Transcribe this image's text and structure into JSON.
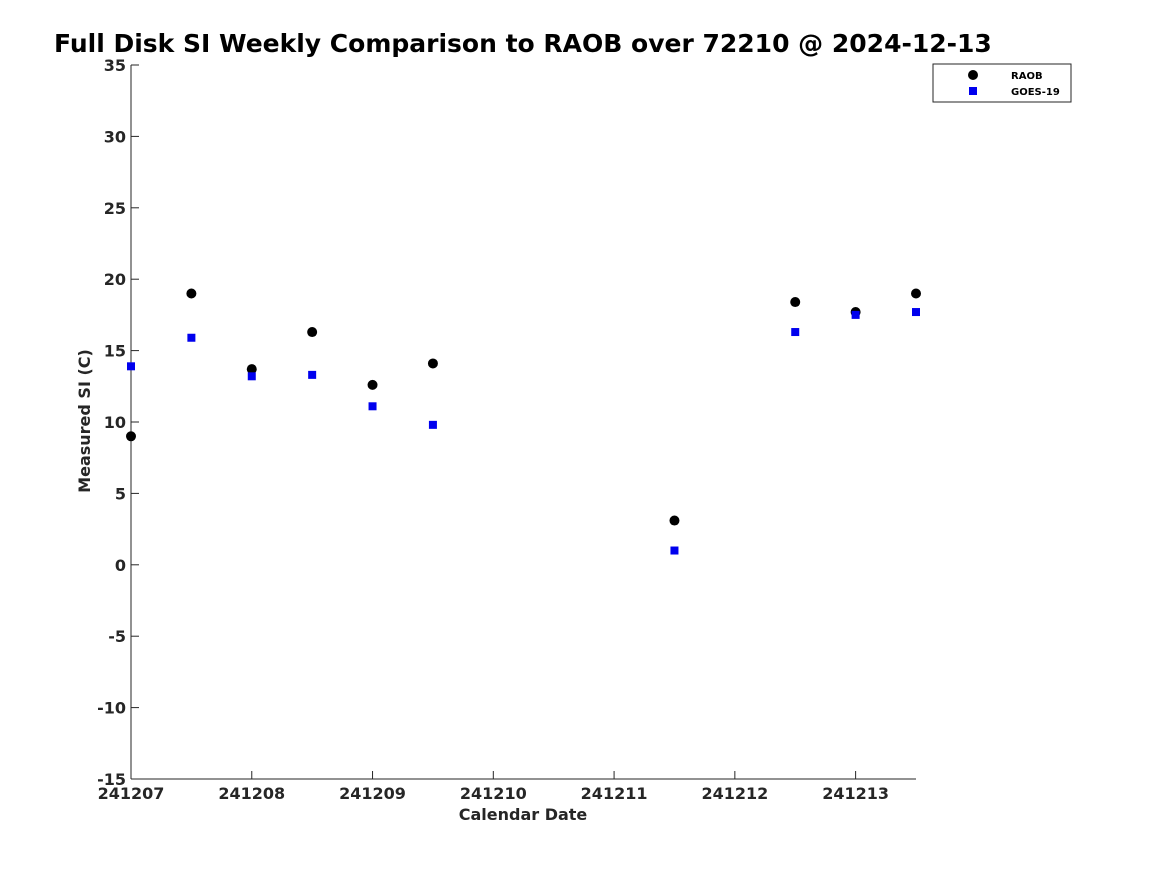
{
  "chart_data": {
    "type": "scatter",
    "title": "Full Disk SI Weekly Comparison to RAOB over 72210 @ 2024-12-13",
    "xlabel": "Calendar Date",
    "ylabel": "Measured SI (C)",
    "x_ticks": [
      "241207",
      "241208",
      "241209",
      "241210",
      "241211",
      "241212",
      "241213"
    ],
    "x_tick_values": [
      0,
      1,
      2,
      3,
      4,
      5,
      6
    ],
    "xlim": [
      0,
      6.5
    ],
    "y_ticks": [
      "35",
      "30",
      "25",
      "20",
      "15",
      "10",
      "5",
      "0",
      "-5",
      "-10",
      "-15"
    ],
    "y_tick_values": [
      35,
      30,
      25,
      20,
      15,
      10,
      5,
      0,
      -5,
      -10,
      -15
    ],
    "ylim": [
      -15,
      35
    ],
    "grid": false,
    "legend_position": "top-right",
    "series": [
      {
        "name": "RAOB",
        "marker": "circle",
        "color": "#000000",
        "points": [
          {
            "x": 0.0,
            "y": 9.0
          },
          {
            "x": 0.5,
            "y": 19.0
          },
          {
            "x": 1.0,
            "y": 13.7
          },
          {
            "x": 1.5,
            "y": 16.3
          },
          {
            "x": 2.0,
            "y": 12.6
          },
          {
            "x": 2.5,
            "y": 14.1
          },
          {
            "x": 4.5,
            "y": 3.1
          },
          {
            "x": 5.5,
            "y": 18.4
          },
          {
            "x": 6.0,
            "y": 17.7
          },
          {
            "x": 6.5,
            "y": 19.0
          }
        ]
      },
      {
        "name": "GOES-19",
        "marker": "square",
        "color": "#0000ee",
        "points": [
          {
            "x": 0.0,
            "y": 13.9
          },
          {
            "x": 0.5,
            "y": 15.9
          },
          {
            "x": 1.0,
            "y": 13.2
          },
          {
            "x": 1.5,
            "y": 13.3
          },
          {
            "x": 2.0,
            "y": 11.1
          },
          {
            "x": 2.5,
            "y": 9.8
          },
          {
            "x": 4.5,
            "y": 1.0
          },
          {
            "x": 5.5,
            "y": 16.3
          },
          {
            "x": 6.0,
            "y": 17.5
          },
          {
            "x": 6.5,
            "y": 17.7
          }
        ]
      }
    ]
  }
}
